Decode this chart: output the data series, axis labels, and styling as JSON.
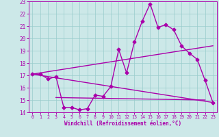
{
  "xlabel": "Windchill (Refroidissement éolien,°C)",
  "ylabel": "",
  "xlim": [
    -0.5,
    23.5
  ],
  "ylim": [
    14,
    23
  ],
  "yticks": [
    14,
    15,
    16,
    17,
    18,
    19,
    20,
    21,
    22,
    23
  ],
  "xticks": [
    0,
    1,
    2,
    3,
    4,
    5,
    6,
    7,
    8,
    9,
    10,
    11,
    12,
    13,
    14,
    15,
    16,
    17,
    18,
    19,
    20,
    21,
    22,
    23
  ],
  "bg_color": "#cce8e8",
  "line_color": "#aa00aa",
  "grid_color": "#99cccc",
  "series": [
    {
      "x": [
        0,
        1,
        2,
        3,
        4,
        5,
        6,
        7,
        8,
        9,
        10,
        11,
        12,
        13,
        14,
        15,
        16,
        17,
        18,
        19,
        20,
        21,
        22,
        23
      ],
      "y": [
        17.1,
        17.1,
        16.7,
        16.9,
        14.4,
        14.4,
        14.2,
        14.3,
        15.4,
        15.3,
        16.1,
        19.1,
        17.2,
        19.7,
        21.4,
        22.8,
        20.9,
        21.1,
        20.7,
        19.4,
        18.8,
        18.3,
        16.6,
        14.8
      ],
      "marker": "D",
      "markersize": 2.5,
      "linewidth": 1.0,
      "is_main": true
    },
    {
      "x": [
        0,
        23
      ],
      "y": [
        17.1,
        19.4
      ],
      "marker": null,
      "linewidth": 1.0,
      "is_main": false
    },
    {
      "x": [
        0,
        23
      ],
      "y": [
        17.1,
        14.8
      ],
      "marker": null,
      "linewidth": 1.0,
      "is_main": false
    },
    {
      "x": [
        3,
        22
      ],
      "y": [
        15.2,
        15.0
      ],
      "marker": null,
      "linewidth": 1.0,
      "is_main": false
    }
  ]
}
